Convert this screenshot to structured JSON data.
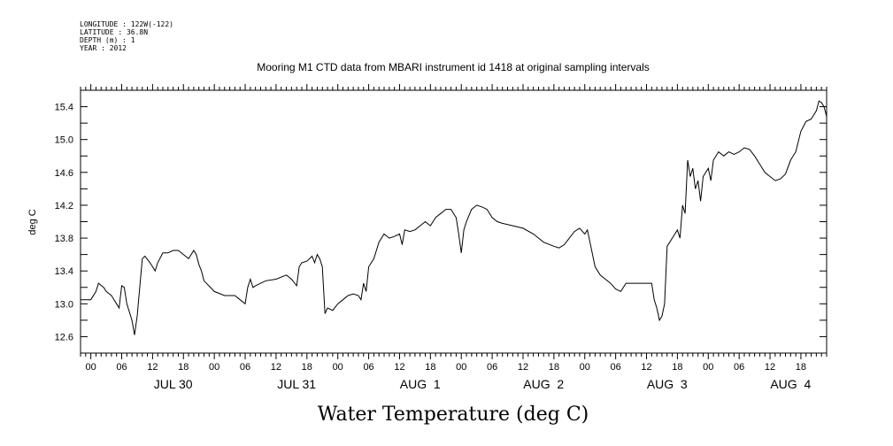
{
  "header": {
    "longitude": "LONGITUDE : 122W(-122)",
    "latitude": "LATITUDE : 36.8N",
    "depth": "DEPTH (m) : 1",
    "year": "YEAR : 2012"
  },
  "chart_data": {
    "type": "line",
    "title": "Mooring M1 CTD data from MBARI instrument id 1418 at original sampling intervals",
    "xlabel": "Water Temperature (deg C)",
    "ylabel": "deg C",
    "ylim": [
      12.4,
      15.6
    ],
    "xlim": [
      "2012-07-29T22:00",
      "2012-08-04T23:00"
    ],
    "yticks": [
      "12.6",
      "13.0",
      "13.4",
      "13.8",
      "14.2",
      "14.6",
      "15.0",
      "15.4"
    ],
    "hour_ticks": [
      "00",
      "06",
      "12",
      "18",
      "00",
      "06",
      "12",
      "18",
      "00",
      "06",
      "12",
      "18",
      "00",
      "06",
      "12",
      "18",
      "00",
      "06",
      "12",
      "18",
      "00",
      "06",
      "12",
      "18"
    ],
    "day_labels": [
      "JUL 30",
      "JUL 31",
      "AUG  1",
      "AUG  2",
      "AUG  3",
      "AUG  4"
    ],
    "grid": false,
    "series": [
      {
        "line_color": "#000000",
        "points": [
          [
            "2012-07-29T22:00",
            13.05
          ],
          [
            "2012-07-30T00:00",
            13.05
          ],
          [
            "2012-07-30T01:00",
            13.15
          ],
          [
            "2012-07-30T01:30",
            13.25
          ],
          [
            "2012-07-30T02:30",
            13.2
          ],
          [
            "2012-07-30T03:00",
            13.15
          ],
          [
            "2012-07-30T04:00",
            13.1
          ],
          [
            "2012-07-30T05:00",
            13.0
          ],
          [
            "2012-07-30T05:30",
            12.95
          ],
          [
            "2012-07-30T06:00",
            13.22
          ],
          [
            "2012-07-30T06:30",
            13.2
          ],
          [
            "2012-07-30T07:00",
            13.0
          ],
          [
            "2012-07-30T08:00",
            12.8
          ],
          [
            "2012-07-30T08:30",
            12.62
          ],
          [
            "2012-07-30T09:00",
            12.85
          ],
          [
            "2012-07-30T09:30",
            13.2
          ],
          [
            "2012-07-30T10:00",
            13.55
          ],
          [
            "2012-07-30T10:30",
            13.58
          ],
          [
            "2012-07-30T11:30",
            13.5
          ],
          [
            "2012-07-30T12:00",
            13.45
          ],
          [
            "2012-07-30T12:30",
            13.4
          ],
          [
            "2012-07-30T13:00",
            13.5
          ],
          [
            "2012-07-30T14:00",
            13.62
          ],
          [
            "2012-07-30T15:00",
            13.62
          ],
          [
            "2012-07-30T16:00",
            13.65
          ],
          [
            "2012-07-30T17:00",
            13.65
          ],
          [
            "2012-07-30T18:00",
            13.6
          ],
          [
            "2012-07-30T19:00",
            13.55
          ],
          [
            "2012-07-30T20:00",
            13.65
          ],
          [
            "2012-07-30T20:30",
            13.6
          ],
          [
            "2012-07-30T21:00",
            13.48
          ],
          [
            "2012-07-30T21:30",
            13.4
          ],
          [
            "2012-07-30T22:00",
            13.28
          ],
          [
            "2012-07-31T00:00",
            13.15
          ],
          [
            "2012-07-31T02:00",
            13.1
          ],
          [
            "2012-07-31T04:00",
            13.1
          ],
          [
            "2012-07-31T05:00",
            13.05
          ],
          [
            "2012-07-31T06:00",
            13.0
          ],
          [
            "2012-07-31T06:30",
            13.2
          ],
          [
            "2012-07-31T07:00",
            13.3
          ],
          [
            "2012-07-31T07:30",
            13.2
          ],
          [
            "2012-07-31T08:00",
            13.22
          ],
          [
            "2012-07-31T09:00",
            13.25
          ],
          [
            "2012-07-31T10:00",
            13.28
          ],
          [
            "2012-07-31T12:00",
            13.3
          ],
          [
            "2012-07-31T14:00",
            13.35
          ],
          [
            "2012-07-31T15:00",
            13.3
          ],
          [
            "2012-07-31T16:00",
            13.22
          ],
          [
            "2012-07-31T16:30",
            13.45
          ],
          [
            "2012-07-31T17:00",
            13.5
          ],
          [
            "2012-07-31T18:00",
            13.52
          ],
          [
            "2012-07-31T19:00",
            13.58
          ],
          [
            "2012-07-31T19:30",
            13.5
          ],
          [
            "2012-07-31T20:00",
            13.6
          ],
          [
            "2012-07-31T20:30",
            13.55
          ],
          [
            "2012-07-31T21:00",
            13.45
          ],
          [
            "2012-07-31T21:30",
            12.88
          ],
          [
            "2012-07-31T22:00",
            12.95
          ],
          [
            "2012-07-31T23:00",
            12.92
          ],
          [
            "2012-08-01T00:00",
            13.0
          ],
          [
            "2012-08-01T01:00",
            13.05
          ],
          [
            "2012-08-01T02:00",
            13.1
          ],
          [
            "2012-08-01T03:00",
            13.12
          ],
          [
            "2012-08-01T04:00",
            13.1
          ],
          [
            "2012-08-01T04:30",
            13.05
          ],
          [
            "2012-08-01T05:00",
            13.25
          ],
          [
            "2012-08-01T05:30",
            13.15
          ],
          [
            "2012-08-01T06:00",
            13.45
          ],
          [
            "2012-08-01T07:00",
            13.55
          ],
          [
            "2012-08-01T08:00",
            13.75
          ],
          [
            "2012-08-01T09:00",
            13.85
          ],
          [
            "2012-08-01T10:00",
            13.8
          ],
          [
            "2012-08-01T11:00",
            13.82
          ],
          [
            "2012-08-01T12:00",
            13.85
          ],
          [
            "2012-08-01T12:30",
            13.72
          ],
          [
            "2012-08-01T13:00",
            13.9
          ],
          [
            "2012-08-01T14:00",
            13.88
          ],
          [
            "2012-08-01T15:00",
            13.9
          ],
          [
            "2012-08-01T16:00",
            13.95
          ],
          [
            "2012-08-01T17:00",
            14.0
          ],
          [
            "2012-08-01T18:00",
            13.95
          ],
          [
            "2012-08-01T19:00",
            14.05
          ],
          [
            "2012-08-01T20:00",
            14.1
          ],
          [
            "2012-08-01T21:00",
            14.15
          ],
          [
            "2012-08-01T22:00",
            14.15
          ],
          [
            "2012-08-01T23:00",
            14.05
          ],
          [
            "2012-08-01T23:30",
            13.85
          ],
          [
            "2012-08-02T00:00",
            13.62
          ],
          [
            "2012-08-02T00:30",
            13.9
          ],
          [
            "2012-08-02T01:00",
            14.0
          ],
          [
            "2012-08-02T02:00",
            14.15
          ],
          [
            "2012-08-02T03:00",
            14.2
          ],
          [
            "2012-08-02T04:00",
            14.18
          ],
          [
            "2012-08-02T05:00",
            14.15
          ],
          [
            "2012-08-02T06:00",
            14.05
          ],
          [
            "2012-08-02T07:00",
            14.0
          ],
          [
            "2012-08-02T08:00",
            13.98
          ],
          [
            "2012-08-02T10:00",
            13.95
          ],
          [
            "2012-08-02T12:00",
            13.92
          ],
          [
            "2012-08-02T14:00",
            13.85
          ],
          [
            "2012-08-02T16:00",
            13.75
          ],
          [
            "2012-08-02T18:00",
            13.7
          ],
          [
            "2012-08-02T19:00",
            13.68
          ],
          [
            "2012-08-02T20:00",
            13.72
          ],
          [
            "2012-08-02T21:00",
            13.8
          ],
          [
            "2012-08-02T22:00",
            13.88
          ],
          [
            "2012-08-02T23:00",
            13.92
          ],
          [
            "2012-08-03T00:00",
            13.85
          ],
          [
            "2012-08-03T00:30",
            13.9
          ],
          [
            "2012-08-03T01:00",
            13.75
          ],
          [
            "2012-08-03T02:00",
            13.45
          ],
          [
            "2012-08-03T03:00",
            13.35
          ],
          [
            "2012-08-03T04:00",
            13.3
          ],
          [
            "2012-08-03T05:00",
            13.25
          ],
          [
            "2012-08-03T06:00",
            13.18
          ],
          [
            "2012-08-03T07:00",
            13.15
          ],
          [
            "2012-08-03T08:00",
            13.25
          ],
          [
            "2012-08-03T10:00",
            13.25
          ],
          [
            "2012-08-03T12:00",
            13.25
          ],
          [
            "2012-08-03T13:00",
            13.25
          ],
          [
            "2012-08-03T13:30",
            13.05
          ],
          [
            "2012-08-03T14:00",
            12.95
          ],
          [
            "2012-08-03T14:30",
            12.8
          ],
          [
            "2012-08-03T15:00",
            12.85
          ],
          [
            "2012-08-03T15:30",
            13.0
          ],
          [
            "2012-08-03T16:00",
            13.7
          ],
          [
            "2012-08-03T17:00",
            13.8
          ],
          [
            "2012-08-03T18:00",
            13.9
          ],
          [
            "2012-08-03T18:30",
            13.8
          ],
          [
            "2012-08-03T19:00",
            14.2
          ],
          [
            "2012-08-03T19:30",
            14.1
          ],
          [
            "2012-08-03T20:00",
            14.75
          ],
          [
            "2012-08-03T20:30",
            14.55
          ],
          [
            "2012-08-03T21:00",
            14.65
          ],
          [
            "2012-08-03T21:30",
            14.4
          ],
          [
            "2012-08-03T22:00",
            14.5
          ],
          [
            "2012-08-03T22:30",
            14.25
          ],
          [
            "2012-08-03T23:00",
            14.55
          ],
          [
            "2012-08-04T00:00",
            14.65
          ],
          [
            "2012-08-04T00:30",
            14.5
          ],
          [
            "2012-08-04T01:00",
            14.75
          ],
          [
            "2012-08-04T02:00",
            14.85
          ],
          [
            "2012-08-04T03:00",
            14.8
          ],
          [
            "2012-08-04T04:00",
            14.85
          ],
          [
            "2012-08-04T05:00",
            14.82
          ],
          [
            "2012-08-04T06:00",
            14.85
          ],
          [
            "2012-08-04T07:00",
            14.9
          ],
          [
            "2012-08-04T08:00",
            14.88
          ],
          [
            "2012-08-04T09:00",
            14.8
          ],
          [
            "2012-08-04T10:00",
            14.7
          ],
          [
            "2012-08-04T11:00",
            14.6
          ],
          [
            "2012-08-04T12:00",
            14.55
          ],
          [
            "2012-08-04T13:00",
            14.5
          ],
          [
            "2012-08-04T14:00",
            14.52
          ],
          [
            "2012-08-04T15:00",
            14.58
          ],
          [
            "2012-08-04T16:00",
            14.75
          ],
          [
            "2012-08-04T17:00",
            14.85
          ],
          [
            "2012-08-04T18:00",
            15.1
          ],
          [
            "2012-08-04T19:00",
            15.22
          ],
          [
            "2012-08-04T20:00",
            15.25
          ],
          [
            "2012-08-04T21:00",
            15.35
          ],
          [
            "2012-08-04T21:30",
            15.47
          ],
          [
            "2012-08-04T22:00",
            15.45
          ],
          [
            "2012-08-04T22:30",
            15.4
          ],
          [
            "2012-08-04T23:00",
            15.28
          ]
        ]
      }
    ]
  }
}
